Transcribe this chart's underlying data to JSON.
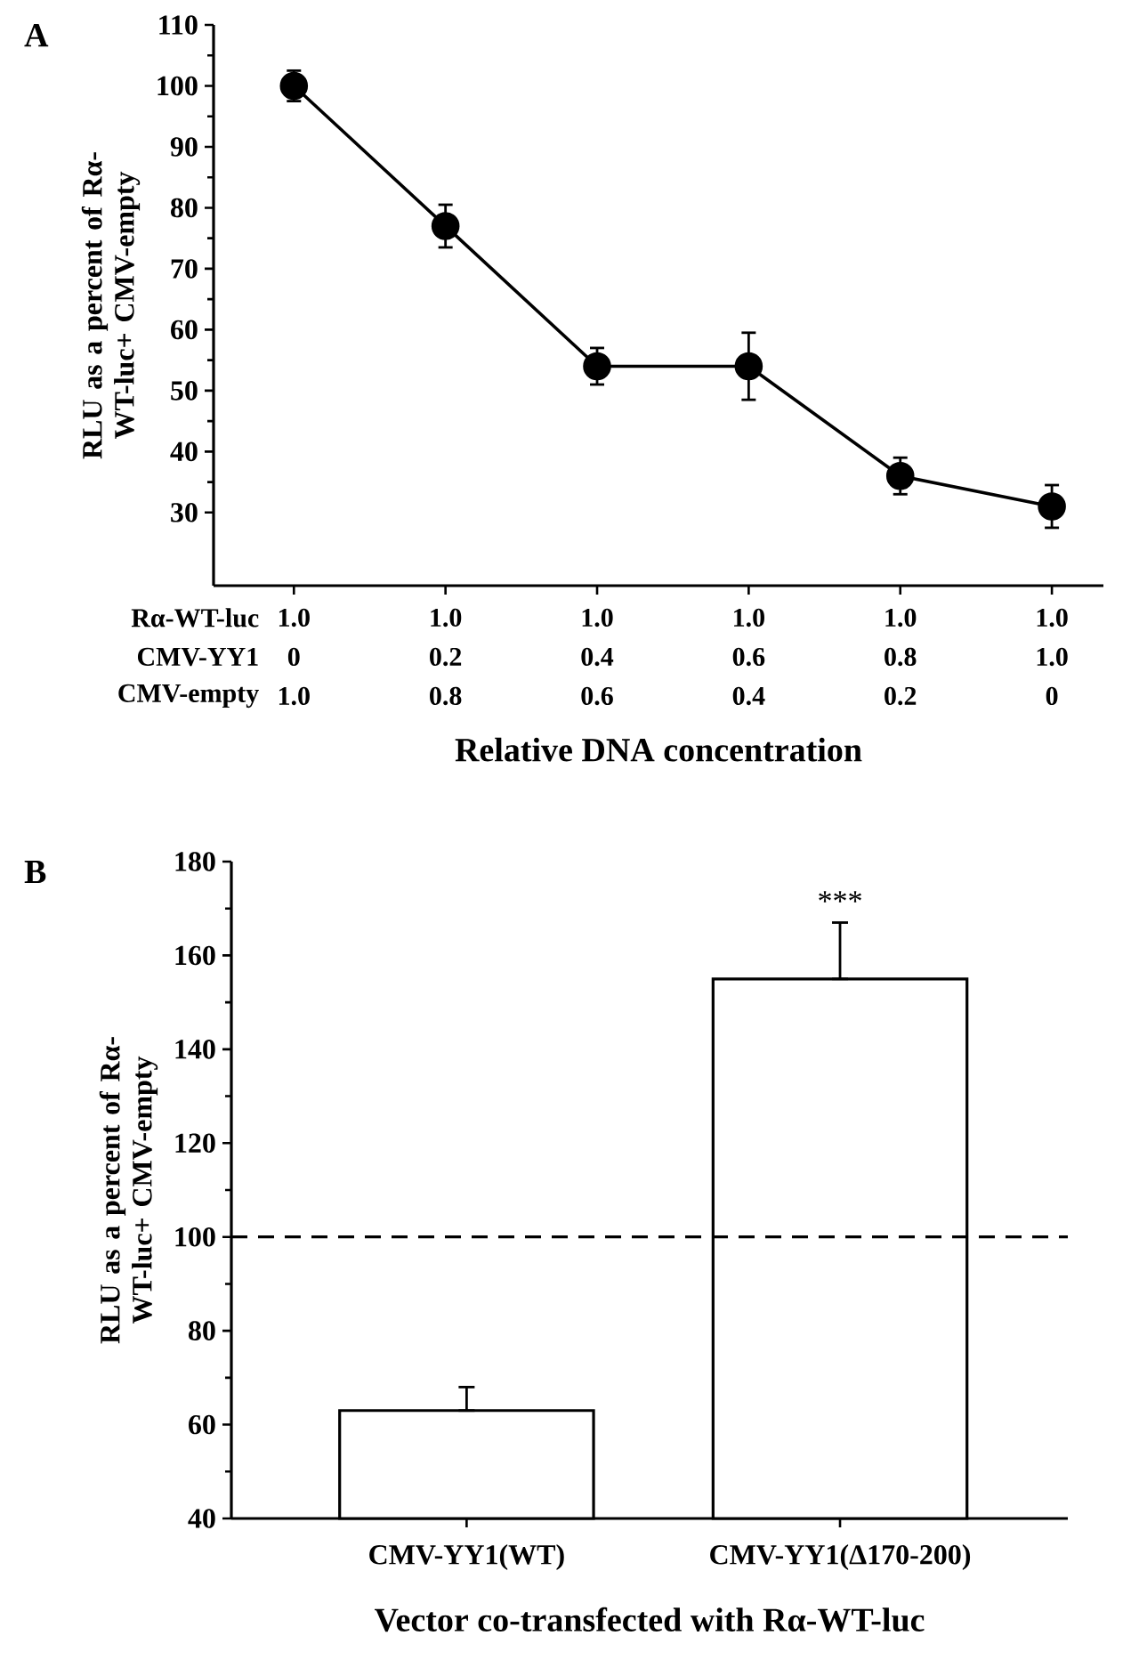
{
  "chart_data": [
    {
      "type": "line",
      "title": "A",
      "ylabel": "RLU as a percent of Rα-WT-luc+ CMV-empty",
      "xlabel": "Relative DNA concentration",
      "categories": [
        null,
        null,
        null,
        null,
        null,
        null
      ],
      "values": [
        100,
        77,
        54,
        54,
        36,
        31
      ],
      "errors": [
        2.5,
        3.5,
        3,
        5.5,
        3,
        3.5
      ],
      "color": "#000000",
      "marker": "circle",
      "ylim": [
        18,
        110
      ],
      "yticks": [
        30,
        40,
        50,
        60,
        70,
        80,
        90,
        100,
        110
      ],
      "annotations": [
        "Rα-WT-luc",
        "1.0",
        "1.0",
        "1.0",
        "1.0",
        "1.0",
        "1.0",
        "CMV-YY1",
        "0",
        "0.2",
        "0.4",
        "0.6",
        "0.8",
        "1.0",
        "CMV-empty",
        "1.0",
        "0.8",
        "0.6",
        "0.4",
        "0.2",
        "0"
      ]
    },
    {
      "type": "bar",
      "title": "B",
      "ylabel": "RLU as a percent of Rα-WT-luc+ CMV-empty",
      "xlabel": "Vector co-transfected with Rα-WT-luc",
      "categories": [
        "CMV-YY1(WT)",
        "CMV-YY1(Δ170-200)"
      ],
      "values": [
        63,
        155
      ],
      "errors": [
        [
          63,
          68
        ],
        [
          155,
          167
        ]
      ],
      "color": "#ffffff",
      "ylim": [
        40,
        180
      ],
      "yticks": [
        40,
        60,
        80,
        100,
        120,
        140,
        160,
        180
      ],
      "ref_lines": [
        {
          "axis": "y",
          "value": 100,
          "line_style": "dashed",
          "color": "#000000"
        }
      ],
      "annotations": [
        "***"
      ]
    }
  ]
}
